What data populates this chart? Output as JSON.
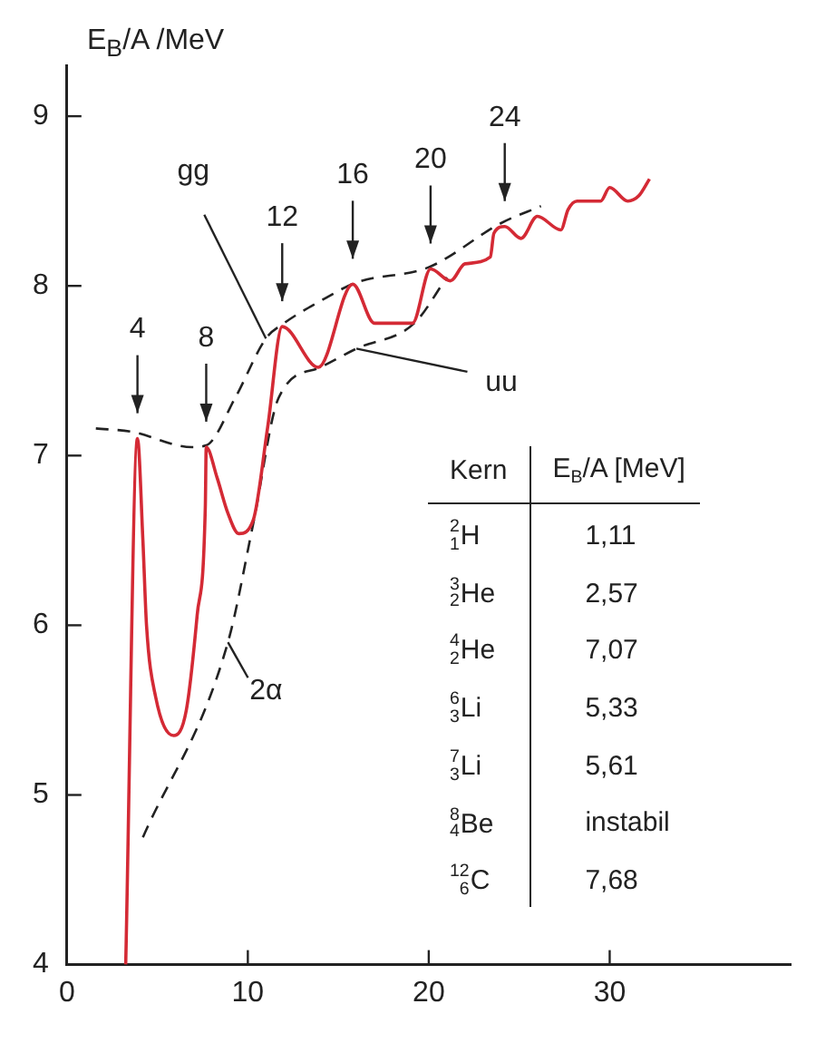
{
  "chart_data": {
    "type": "line",
    "ylabel": "E$_{B}$/A /MeV",
    "xlim": [
      0,
      40
    ],
    "xticks": [
      0,
      10,
      20,
      30
    ],
    "ylim": [
      4,
      9.3
    ],
    "yticks": [
      4,
      5,
      6,
      7,
      8,
      9
    ],
    "grid": false,
    "legend": false,
    "marker": "none",
    "series": [
      {
        "color": "#d42a35",
        "line_style": "solid",
        "x": [
          3.25,
          3.9,
          4.2,
          4.4,
          4.9,
          5.9,
          6.6,
          7.2,
          7.65,
          7.7,
          8.3,
          8.9,
          9.5,
          10.3,
          11.1,
          11.9,
          13.9,
          15.8,
          17,
          19.1,
          20.1,
          21.2,
          22,
          23.4,
          23.6,
          24.2,
          25.1,
          26,
          27.3,
          27.7,
          28.2,
          29.5,
          30,
          31,
          31.6,
          32.2
        ],
        "values": [
          4,
          7.1,
          6.5,
          6,
          5.58,
          5.35,
          5.5,
          6.06,
          6.7,
          7.05,
          6.87,
          6.66,
          6.54,
          6.62,
          7.17,
          7.76,
          7.52,
          8.01,
          7.78,
          7.78,
          8.1,
          8.03,
          8.13,
          8.17,
          8.31,
          8.35,
          8.28,
          8.41,
          8.33,
          8.45,
          8.5,
          8.5,
          8.58,
          8.5,
          8.53,
          8.63
        ]
      },
      {
        "color": "#222222",
        "line_style": "dashed",
        "x": [
          1.6,
          3.6,
          6.9,
          7.7,
          9.3,
          11,
          12,
          14,
          16,
          20,
          24,
          26.2
        ],
        "values": [
          7.16,
          7.14,
          7.05,
          7.06,
          7.34,
          7.69,
          7.78,
          7.91,
          8.02,
          8.11,
          8.37,
          8.47
        ]
      },
      {
        "color": "#222222",
        "line_style": "dashed",
        "x": [
          4.2,
          8.9,
          10.3,
          11.7,
          14,
          16,
          19.2,
          21
        ],
        "values": [
          4.75,
          5.9,
          6.6,
          7.34,
          7.52,
          7.63,
          7.78,
          8.05
        ]
      }
    ],
    "annotations": [
      "4",
      "8",
      "12",
      "16",
      "20",
      "24",
      {
        "text": "gg",
        "x": 11,
        "y": 7.69
      },
      {
        "text": "uu",
        "x": 16,
        "y": 7.63
      },
      {
        "text": "2α",
        "x": 8.9,
        "y": 5.9
      },
      "Kern",
      "E$_{B}$/A  [MeV]",
      "$^{2}$$_{1}$H",
      "1,11",
      "$^{3}$$_{2}$He",
      "2,57",
      "$^{4}$$_{2}$He",
      "7,07",
      "$^{6}$$_{3}$Li",
      "5,33",
      "$^{7}$$_{3}$Li",
      "5,61",
      "$^{8}$$_{4}$Be",
      "instabil",
      "$^{12}$$_{6}$C",
      "7,68"
    ]
  }
}
